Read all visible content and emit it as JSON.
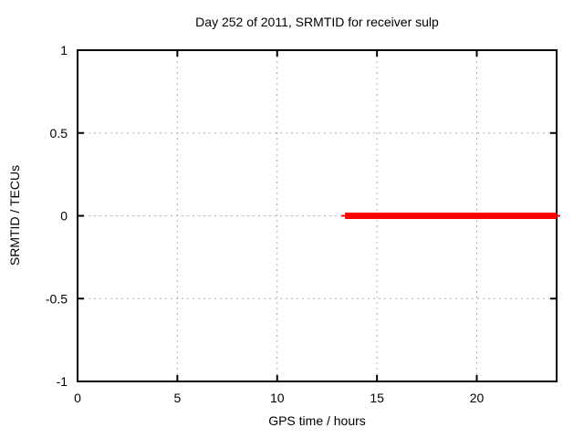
{
  "chart_data": {
    "type": "line",
    "title": "Day 252 of 2011, SRMTID for receiver sulp",
    "xlabel": "GPS time / hours",
    "ylabel": "SRMTID / TECUs",
    "xlim": [
      0,
      24
    ],
    "ylim": [
      -1,
      1
    ],
    "xticks": [
      {
        "v": 0,
        "label": "0"
      },
      {
        "v": 5,
        "label": "5"
      },
      {
        "v": 10,
        "label": "10"
      },
      {
        "v": 15,
        "label": "15"
      },
      {
        "v": 20,
        "label": "20"
      }
    ],
    "yticks": [
      {
        "v": -1,
        "label": "-1"
      },
      {
        "v": -0.5,
        "label": "-0.5"
      },
      {
        "v": 0,
        "label": "0"
      },
      {
        "v": 0.5,
        "label": "0.5"
      },
      {
        "v": 1,
        "label": "1"
      }
    ],
    "grid": true,
    "grid_color": "#b0b0b0",
    "axis_color": "#000000",
    "legend": "none",
    "series": [
      {
        "name": "SRMTID",
        "color": "#ff0000",
        "y": 0,
        "x_start": 13.4,
        "x_end": 24
      }
    ]
  }
}
